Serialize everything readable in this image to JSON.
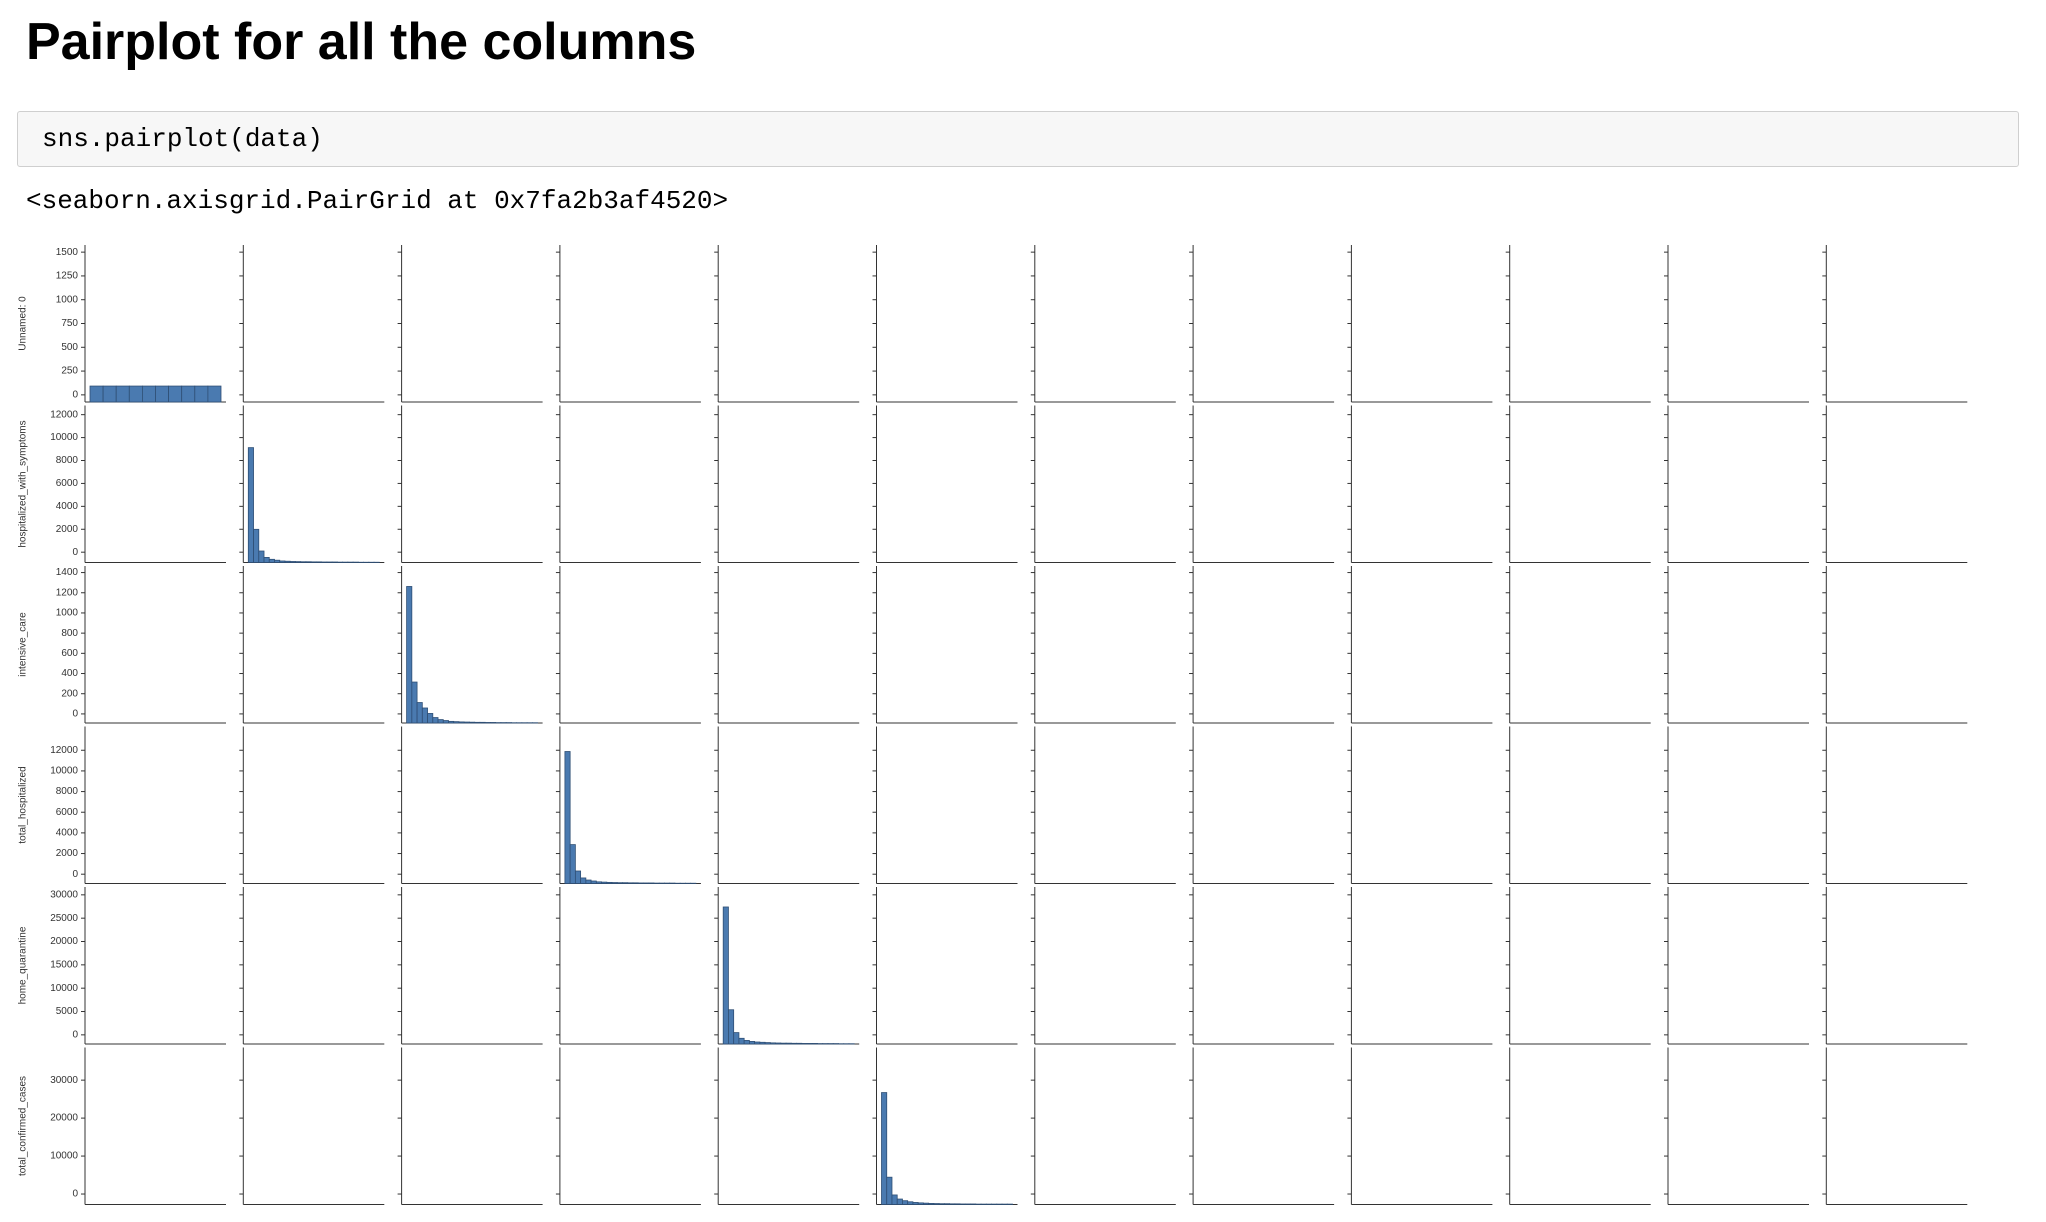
{
  "header": {
    "title": "Pairplot for all the columns"
  },
  "cell": {
    "code": "sns.pairplot(data)",
    "output": "<seaborn.axisgrid.PairGrid at 0x7fa2b3af4520>"
  },
  "chart_data": {
    "type": "pairplot",
    "columns": 12,
    "color": "#4a7ab0",
    "rows": [
      {
        "label": "Unnamed: 0",
        "ylim": [
          -75,
          1575
        ],
        "yticks": [
          0,
          250,
          500,
          750,
          1000,
          1250,
          1500
        ],
        "hist": {
          "values": [
            160,
            160,
            160,
            160,
            160,
            160,
            160,
            160,
            160,
            160
          ],
          "ylim": [
            0,
            1575
          ]
        }
      },
      {
        "label": "hospitalized_with_symptoms",
        "ylim": [
          -900,
          12800
        ],
        "yticks": [
          0,
          2000,
          4000,
          6000,
          8000,
          10000,
          12000
        ],
        "hist": {
          "values": [
            900,
            260,
            90,
            40,
            25,
            18,
            12,
            10,
            8,
            7,
            6,
            6,
            5,
            5,
            4,
            4,
            4,
            3,
            3,
            3,
            3,
            2,
            2,
            2,
            2
          ],
          "ylim": [
            0,
            1230
          ]
        }
      },
      {
        "label": "intensive_care",
        "ylim": [
          -90,
          1465
        ],
        "yticks": [
          0,
          200,
          400,
          600,
          800,
          1000,
          1200,
          1400
        ],
        "hist": {
          "values": [
            1000,
            300,
            150,
            110,
            70,
            40,
            25,
            18,
            12,
            10,
            8,
            7,
            6,
            5,
            5,
            4,
            4,
            3,
            3,
            3,
            2,
            2,
            2,
            2,
            2
          ],
          "ylim": [
            0,
            1150
          ]
        }
      },
      {
        "label": "total_hospitalized",
        "ylim": [
          -900,
          14300
        ],
        "yticks": [
          0,
          2000,
          4000,
          6000,
          8000,
          10000,
          12000
        ],
        "hist": {
          "values": [
            950,
            280,
            90,
            40,
            25,
            18,
            12,
            10,
            8,
            7,
            6,
            6,
            5,
            5,
            4,
            4,
            4,
            3,
            3,
            3,
            3,
            2,
            2,
            2,
            2
          ],
          "ylim": [
            0,
            1130
          ]
        }
      },
      {
        "label": "home_quarantine",
        "ylim": [
          -1960,
          31680
        ],
        "yticks": [
          0,
          5000,
          10000,
          15000,
          20000,
          25000,
          30000
        ],
        "hist": {
          "values": [
            960,
            240,
            80,
            40,
            25,
            18,
            14,
            12,
            10,
            8,
            7,
            6,
            6,
            5,
            5,
            4,
            4,
            4,
            3,
            3,
            3,
            3,
            2,
            2,
            2
          ],
          "ylim": [
            0,
            1100
          ]
        }
      },
      {
        "label": "total_confirmed_cases",
        "ylim": [
          -2760,
          38600
        ],
        "yticks": [
          0,
          10000,
          20000,
          30000
        ],
        "hist": {
          "values": [
            820,
            200,
            70,
            40,
            28,
            20,
            15,
            12,
            10,
            8,
            7,
            6,
            6,
            5,
            5,
            4,
            4,
            4,
            3,
            3,
            3,
            3,
            3,
            3,
            3
          ],
          "ylim": [
            0,
            1150
          ]
        }
      }
    ]
  }
}
